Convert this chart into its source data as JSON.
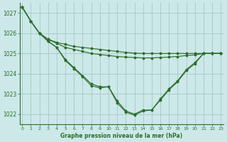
{
  "title": "Graphe pression niveau de la mer (hPa)",
  "background_color": "#cce8e8",
  "grid_color": "#aacccc",
  "line_color": "#2d6e2d",
  "marker_color": "#2d6e2d",
  "label_color": "#2d6e2d",
  "line1": [
    1027.3,
    1026.6,
    1026.0,
    1025.7,
    1025.55,
    1025.45,
    1025.35,
    1025.3,
    1025.25,
    1025.2,
    1025.15,
    1025.1,
    1025.05,
    1025.02,
    1025.0,
    1025.0,
    1025.0,
    1025.0,
    1025.0,
    1025.0,
    1025.0,
    1025.0,
    1025.0,
    1025.0
  ],
  "line2": [
    1027.3,
    1026.6,
    1026.0,
    1025.7,
    1025.5,
    1025.3,
    1025.2,
    1025.1,
    1025.0,
    1024.95,
    1024.9,
    1024.85,
    1024.82,
    1024.8,
    1024.78,
    1024.78,
    1024.8,
    1024.82,
    1024.85,
    1024.9,
    1024.93,
    1025.0,
    1025.0,
    1025.0
  ],
  "line3": [
    1027.3,
    1026.6,
    1026.0,
    1025.6,
    1025.3,
    1024.7,
    1024.3,
    1023.9,
    1023.5,
    1023.35,
    1023.35,
    1022.65,
    1022.15,
    1022.0,
    1022.2,
    1022.2,
    1022.75,
    1023.25,
    1023.65,
    1024.2,
    1024.55,
    1025.0,
    1025.0,
    1025.0
  ],
  "line4": [
    1027.3,
    1026.6,
    1026.0,
    1025.6,
    1025.3,
    1024.65,
    1024.25,
    1023.85,
    1023.4,
    1023.3,
    1023.35,
    1022.55,
    1022.1,
    1021.95,
    1022.15,
    1022.2,
    1022.7,
    1023.2,
    1023.6,
    1024.15,
    1024.5,
    1025.0,
    1025.0,
    1025.0
  ],
  "ylim": [
    1021.5,
    1027.5
  ],
  "yticks": [
    1022,
    1023,
    1024,
    1025,
    1026,
    1027
  ],
  "xlim": [
    -0.3,
    23.3
  ],
  "xticks": [
    0,
    1,
    2,
    3,
    4,
    5,
    6,
    7,
    8,
    9,
    10,
    11,
    12,
    13,
    14,
    15,
    16,
    17,
    18,
    19,
    20,
    21,
    22,
    23
  ],
  "xtick_labels": [
    "0",
    "1",
    "2",
    "3",
    "4",
    "5",
    "6",
    "7",
    "8",
    "9",
    "10",
    "11",
    "12",
    "13",
    "14",
    "15",
    "16",
    "17",
    "18",
    "19",
    "20",
    "21",
    "22",
    "23"
  ]
}
